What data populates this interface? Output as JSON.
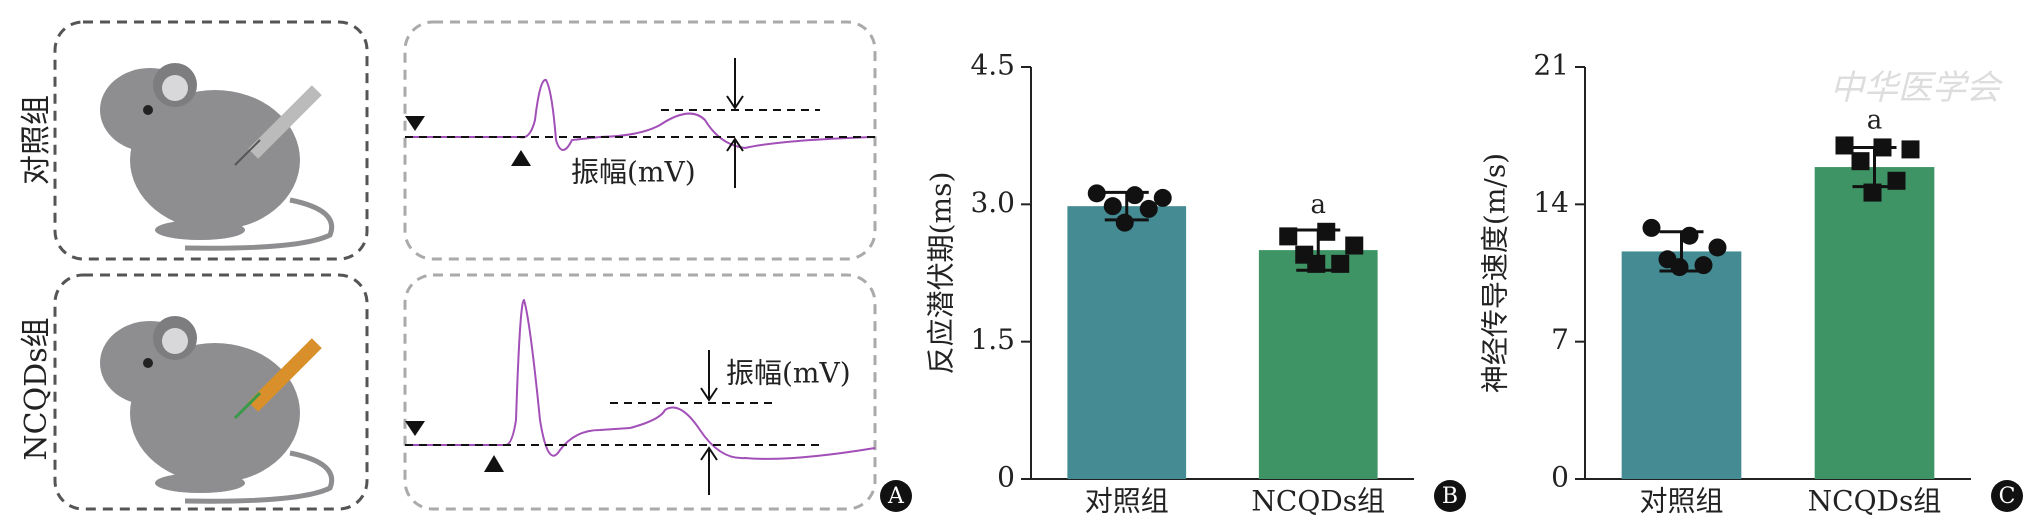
{
  "panel_a": {
    "panel_label": "A",
    "rows": [
      {
        "label": "对照组",
        "amplitude_label": "振幅(mV)"
      },
      {
        "label": "NCQDs组",
        "amplitude_label": "振幅(mV)"
      }
    ]
  },
  "watermark": "中华医学会",
  "chart_data": [
    {
      "type": "bar",
      "panel_label": "B",
      "ylabel": "反应潜伏期(ms)",
      "categories": [
        "对照组",
        "NCQDs组"
      ],
      "values": [
        2.98,
        2.5
      ],
      "errors": [
        0.15,
        0.22
      ],
      "colors": [
        "#458b93",
        "#3f9465"
      ],
      "point_shapes": [
        "circle",
        "square"
      ],
      "points": [
        [
          3.12,
          3.1,
          3.07,
          2.98,
          2.95,
          2.8
        ],
        [
          2.65,
          2.7,
          2.55,
          2.45,
          2.35,
          2.35
        ]
      ],
      "annotations": [
        null,
        "a"
      ],
      "ylim": [
        0,
        4.5
      ],
      "yticks": [
        0,
        1.5,
        {
          "value": 3,
          "label": "3.0"
        },
        4.5
      ]
    },
    {
      "type": "bar",
      "panel_label": "C",
      "ylabel": "神经传导速度(m/s)",
      "categories": [
        "对照组",
        "NCQDs组"
      ],
      "values": [
        11.6,
        15.9
      ],
      "errors": [
        1.0,
        1.0
      ],
      "colors": [
        "#458b93",
        "#3f9465"
      ],
      "point_shapes": [
        "circle",
        "square"
      ],
      "points": [
        [
          12.8,
          12.4,
          11.8,
          11.2,
          10.9,
          10.8
        ],
        [
          17.0,
          16.9,
          16.8,
          16.2,
          15.2,
          14.6
        ]
      ],
      "annotations": [
        null,
        "a"
      ],
      "ylim": [
        0,
        21
      ],
      "yticks": [
        0,
        7,
        14,
        21
      ]
    }
  ]
}
